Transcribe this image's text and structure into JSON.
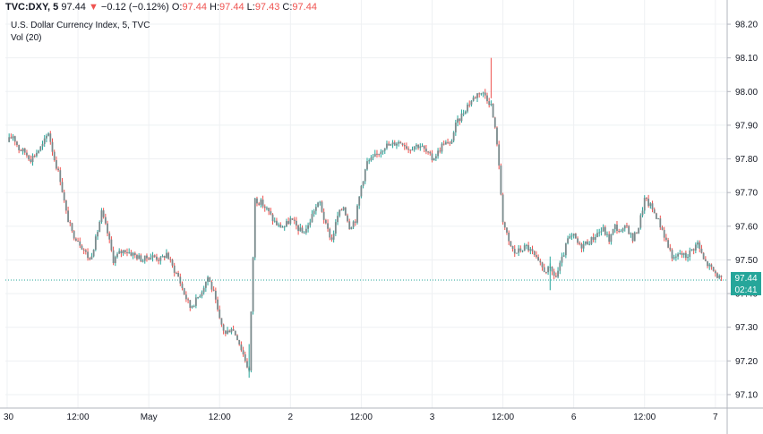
{
  "header": {
    "symbol": "TVC:DXY, 5",
    "last": "97.44",
    "change_icon": "down-triangle-icon",
    "change": "−0.12 (−0.12%)",
    "o_label": "O:",
    "o_value": "97.44",
    "h_label": "H:",
    "h_value": "97.44",
    "l_label": "L:",
    "l_value": "97.43",
    "c_label": "C:",
    "c_value": "97.44"
  },
  "legend": {
    "title": "U.S. Dollar Currency Index, 5, TVC",
    "volume": "Vol (20)"
  },
  "price_badge": {
    "value": "97.44",
    "countdown": "02:41"
  },
  "colors": {
    "up": "#26a69a",
    "down": "#ef5350",
    "candle_body": "#7a8a8c",
    "price_line": "#26a69a",
    "grid": "#eef0f3"
  },
  "chart_data": {
    "type": "line",
    "title": "U.S. Dollar Currency Index, 5, TVC",
    "symbol": "TVC:DXY",
    "interval": "5",
    "ylim": [
      97.06,
      98.24
    ],
    "y_ticks": [
      "98.20",
      "98.10",
      "98.00",
      "97.90",
      "97.80",
      "97.70",
      "97.60",
      "97.50",
      "97.40",
      "97.30",
      "97.20",
      "97.10"
    ],
    "x_ticks": [
      "30",
      "12:00",
      "May",
      "12:00",
      "2",
      "12:00",
      "3",
      "12:00",
      "6",
      "12:00",
      "7"
    ],
    "x_tick_times": [
      0,
      12,
      24,
      36,
      48,
      60,
      72,
      84,
      96,
      108,
      120
    ],
    "xlim": [
      -0.3,
      122.0
    ],
    "grid": true,
    "last_price": 97.44,
    "series": [
      {
        "x": [
          0,
          1,
          2,
          3,
          4,
          5,
          6,
          7,
          8,
          9,
          10,
          11,
          12,
          13,
          14,
          15,
          16,
          17,
          18,
          19,
          20,
          21,
          22,
          23,
          24,
          25,
          26,
          27,
          28,
          29,
          30,
          31,
          32,
          33,
          34,
          35,
          36,
          37,
          38,
          39,
          40,
          41,
          42,
          43,
          44,
          45,
          46,
          47,
          48,
          49,
          50,
          51,
          52,
          53,
          54,
          55,
          56,
          57,
          58,
          59,
          60,
          61,
          62,
          63,
          64,
          65,
          66,
          67,
          68,
          69,
          70,
          71,
          72,
          73,
          74,
          75,
          76,
          77,
          78,
          79,
          80,
          81,
          82,
          83,
          84,
          85,
          86,
          87,
          88,
          89,
          90,
          91,
          92,
          93,
          94,
          95,
          96,
          97,
          98,
          99,
          100,
          101,
          102,
          103,
          104,
          105,
          106,
          107,
          108,
          109,
          110,
          111,
          112,
          113,
          114,
          115,
          116,
          117,
          118,
          119,
          120,
          121
        ],
        "y": [
          97.85,
          97.87,
          97.83,
          97.82,
          97.8,
          97.82,
          97.84,
          97.88,
          97.8,
          97.74,
          97.64,
          97.58,
          97.56,
          97.53,
          97.5,
          97.56,
          97.64,
          97.58,
          97.5,
          97.52,
          97.53,
          97.52,
          97.51,
          97.5,
          97.51,
          97.51,
          97.5,
          97.52,
          97.48,
          97.45,
          97.4,
          97.36,
          97.38,
          97.41,
          97.45,
          97.4,
          97.32,
          97.28,
          97.3,
          97.27,
          97.22,
          97.17,
          97.68,
          97.67,
          97.65,
          97.62,
          97.6,
          97.6,
          97.62,
          97.6,
          97.58,
          97.6,
          97.65,
          97.67,
          97.6,
          97.56,
          97.63,
          97.66,
          97.6,
          97.62,
          97.72,
          97.79,
          97.8,
          97.82,
          97.84,
          97.84,
          97.85,
          97.85,
          97.83,
          97.84,
          97.84,
          97.82,
          97.8,
          97.82,
          97.85,
          97.84,
          97.9,
          97.93,
          97.96,
          97.98,
          98.0,
          97.99,
          97.96,
          97.85,
          97.62,
          97.55,
          97.52,
          97.53,
          97.54,
          97.52,
          97.49,
          97.47,
          97.47,
          97.45,
          97.5,
          97.56,
          97.57,
          97.54,
          97.55,
          97.56,
          97.58,
          97.59,
          97.56,
          97.6,
          97.58,
          97.6,
          97.56,
          97.6,
          97.68,
          97.66,
          97.63,
          97.59,
          97.54,
          97.5,
          97.52,
          97.51,
          97.53,
          97.55,
          97.5,
          97.48,
          97.46,
          97.44
        ]
      }
    ],
    "hi_spikes": [
      {
        "x": 82,
        "y": 98.1
      }
    ],
    "lo_spikes": [
      {
        "x": 41,
        "y": 97.15
      },
      {
        "x": 92,
        "y": 97.41
      }
    ]
  }
}
